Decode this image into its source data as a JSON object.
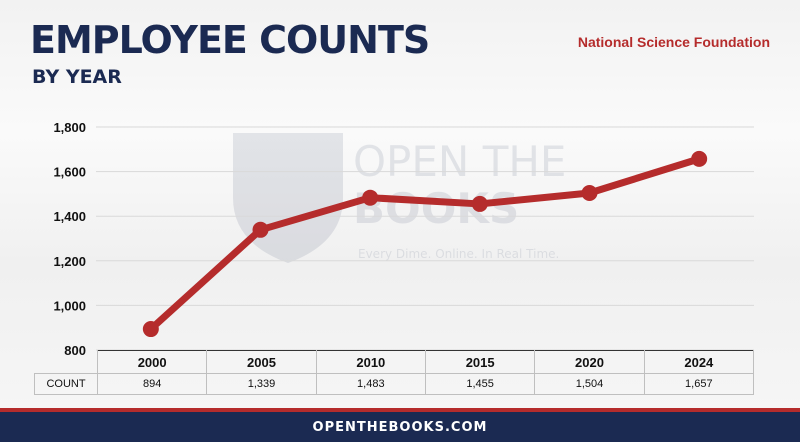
{
  "header": {
    "title": "EMPLOYEE COUNTS",
    "subtitle": "BY YEAR",
    "source": "National Science Foundation"
  },
  "watermark": {
    "line1": "OPEN THE",
    "line2": "BOOKS",
    "tagline": "Every Dime. Online. In Real Time."
  },
  "colors": {
    "navy": "#1b2a52",
    "red": "#b52c2c",
    "line": "#b52c2c"
  },
  "chart_data": {
    "type": "line",
    "title": "EMPLOYEE COUNTS",
    "subtitle": "BY YEAR",
    "categories": [
      "2000",
      "2005",
      "2010",
      "2015",
      "2020",
      "2024"
    ],
    "series": [
      {
        "name": "COUNT",
        "values": [
          894,
          1339,
          1483,
          1455,
          1504,
          1657
        ]
      }
    ],
    "value_labels": [
      "894",
      "1,339",
      "1,483",
      "1,455",
      "1,504",
      "1,657"
    ],
    "ylim": [
      800,
      1800
    ],
    "yticks": [
      800,
      1000,
      1200,
      1400,
      1600,
      1800
    ],
    "ytick_labels": [
      "800",
      "1,000",
      "1,200",
      "1,400",
      "1,600",
      "1,800"
    ],
    "grid": true,
    "legend": "none",
    "table_row_label": "COUNT"
  },
  "footer": {
    "url": "OPENTHEBOOKS.COM"
  }
}
